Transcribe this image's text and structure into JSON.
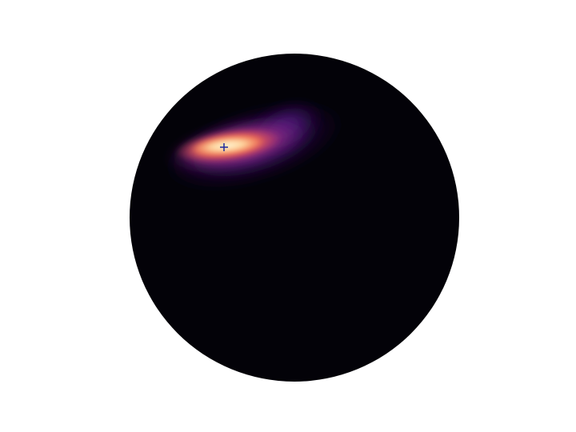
{
  "figure": {
    "background": "#ffffff",
    "colormap": "magma",
    "disk_color": "#030208",
    "marker": {
      "symbol": "+",
      "color": "#1f2a9c"
    }
  }
}
